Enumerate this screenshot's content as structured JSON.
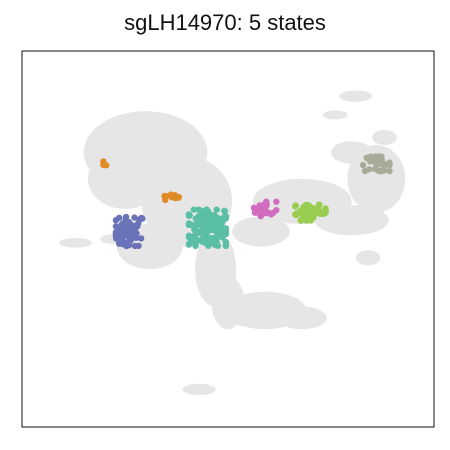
{
  "chart_data": {
    "type": "scatter",
    "title": "sgLH14970: 5 states",
    "xlabel": "",
    "ylabel": "",
    "grid": false,
    "legend": "none",
    "background_color": "#e6e6e6",
    "xlim": [
      0,
      100
    ],
    "ylim": [
      0,
      100
    ],
    "background_regions": [
      {
        "cx": 30,
        "cy": 73,
        "rx": 15,
        "ry": 11
      },
      {
        "cx": 40,
        "cy": 60,
        "rx": 11,
        "ry": 12
      },
      {
        "cx": 31,
        "cy": 48,
        "rx": 8,
        "ry": 6
      },
      {
        "cx": 25,
        "cy": 66,
        "rx": 9,
        "ry": 8
      },
      {
        "cx": 47,
        "cy": 42,
        "rx": 5,
        "ry": 10
      },
      {
        "cx": 50,
        "cy": 33,
        "rx": 4,
        "ry": 7
      },
      {
        "cx": 59,
        "cy": 31,
        "rx": 10,
        "ry": 5
      },
      {
        "cx": 68,
        "cy": 29,
        "rx": 6,
        "ry": 3
      },
      {
        "cx": 58,
        "cy": 52,
        "rx": 7,
        "ry": 4
      },
      {
        "cx": 68,
        "cy": 60,
        "rx": 12,
        "ry": 6
      },
      {
        "cx": 80,
        "cy": 55,
        "rx": 9,
        "ry": 4
      },
      {
        "cx": 86,
        "cy": 66,
        "rx": 7,
        "ry": 9
      },
      {
        "cx": 80,
        "cy": 73,
        "rx": 5,
        "ry": 3
      },
      {
        "cx": 88,
        "cy": 77,
        "rx": 3,
        "ry": 2
      },
      {
        "cx": 76,
        "cy": 83,
        "rx": 3,
        "ry": 1.2
      },
      {
        "cx": 81,
        "cy": 88,
        "rx": 4,
        "ry": 1.5
      },
      {
        "cx": 13,
        "cy": 49,
        "rx": 4,
        "ry": 1.3
      },
      {
        "cx": 22,
        "cy": 50,
        "rx": 3,
        "ry": 1.3
      },
      {
        "cx": 43,
        "cy": 10,
        "rx": 4,
        "ry": 1.5
      },
      {
        "cx": 84,
        "cy": 45,
        "rx": 3,
        "ry": 2
      }
    ],
    "series": [
      {
        "color": "#6a73b8",
        "x": 26,
        "y": 52,
        "sx": 2.0,
        "sy": 2.4,
        "n": 60
      },
      {
        "color": "#e08b25",
        "x": 36,
        "y": 61,
        "sx": 1.3,
        "sy": 0.5,
        "n": 10
      },
      {
        "color": "#e08b25",
        "x": 20,
        "y": 70,
        "sx": 0.4,
        "sy": 0.4,
        "n": 3
      },
      {
        "color": "#5bbfa6",
        "x": 45,
        "y": 53,
        "sx": 2.8,
        "sy": 3.0,
        "n": 150
      },
      {
        "color": "#d26cbf",
        "x": 59,
        "y": 58,
        "sx": 1.7,
        "sy": 1.2,
        "n": 25
      },
      {
        "color": "#98cd4f",
        "x": 70,
        "y": 57,
        "sx": 2.3,
        "sy": 1.3,
        "n": 45
      },
      {
        "color": "#a8ab98",
        "x": 86,
        "y": 70,
        "sx": 2.0,
        "sy": 1.2,
        "n": 35
      }
    ]
  }
}
